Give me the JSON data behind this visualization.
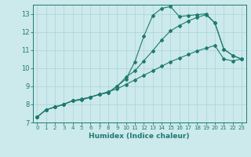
{
  "xlabel": "Humidex (Indice chaleur)",
  "bg_color": "#cce9ec",
  "line_color": "#1e7a70",
  "grid_color": "#aad4d8",
  "xlim": [
    -0.5,
    23.5
  ],
  "ylim": [
    7,
    13.5
  ],
  "yticks": [
    7,
    8,
    9,
    10,
    11,
    12,
    13
  ],
  "xticks": [
    0,
    1,
    2,
    3,
    4,
    5,
    6,
    7,
    8,
    9,
    10,
    11,
    12,
    13,
    14,
    15,
    16,
    17,
    18,
    19,
    20,
    21,
    22,
    23
  ],
  "line1_x": [
    0,
    1,
    2,
    3,
    4,
    5,
    6,
    7,
    8,
    9,
    10,
    11,
    12,
    13,
    14,
    15,
    16,
    17,
    18,
    19,
    20,
    21,
    22,
    23
  ],
  "line1_y": [
    7.3,
    7.7,
    7.85,
    8.0,
    8.2,
    8.3,
    8.4,
    8.55,
    8.7,
    8.85,
    9.1,
    9.35,
    9.6,
    9.85,
    10.1,
    10.35,
    10.55,
    10.75,
    10.95,
    11.1,
    11.25,
    10.5,
    10.4,
    10.5
  ],
  "line2_x": [
    0,
    1,
    2,
    3,
    4,
    5,
    6,
    7,
    8,
    9,
    10,
    11,
    12,
    13,
    14,
    15,
    16,
    17,
    18,
    19,
    20,
    21,
    22,
    23
  ],
  "line2_y": [
    7.3,
    7.7,
    7.85,
    8.0,
    8.2,
    8.25,
    8.4,
    8.55,
    8.65,
    9.0,
    9.4,
    10.35,
    11.75,
    12.9,
    13.3,
    13.4,
    12.85,
    12.9,
    12.95,
    13.0,
    12.5,
    11.05,
    10.7,
    10.5
  ],
  "line3_x": [
    0,
    1,
    2,
    3,
    4,
    5,
    6,
    7,
    8,
    9,
    10,
    11,
    12,
    13,
    14,
    15,
    16,
    17,
    18,
    19,
    20,
    21,
    22,
    23
  ],
  "line3_y": [
    7.3,
    7.7,
    7.85,
    8.0,
    8.2,
    8.25,
    8.4,
    8.55,
    8.65,
    9.0,
    9.5,
    9.85,
    10.4,
    10.95,
    11.55,
    12.05,
    12.35,
    12.6,
    12.8,
    12.95,
    12.5,
    11.05,
    10.7,
    10.5
  ]
}
